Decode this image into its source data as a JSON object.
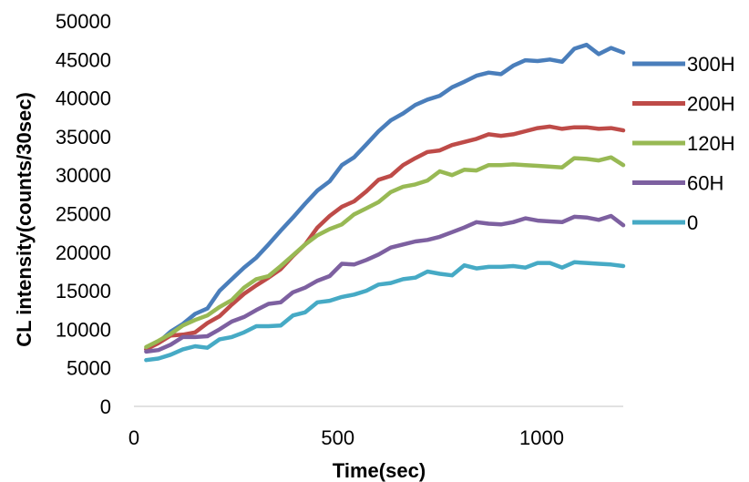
{
  "chart_data": {
    "type": "line",
    "xlabel": "Time(sec)",
    "ylabel": "CL intensity(counts/30sec)",
    "xlim": [
      0,
      1200
    ],
    "ylim": [
      0,
      50000
    ],
    "x_ticks": [
      0,
      500,
      1000
    ],
    "y_ticks": [
      0,
      5000,
      10000,
      15000,
      20000,
      25000,
      30000,
      35000,
      40000,
      45000,
      50000
    ],
    "grid": false,
    "legend_position": "right",
    "x": [
      30,
      60,
      90,
      120,
      150,
      180,
      210,
      240,
      270,
      300,
      330,
      360,
      390,
      420,
      450,
      480,
      510,
      540,
      570,
      600,
      630,
      660,
      690,
      720,
      750,
      780,
      810,
      840,
      870,
      900,
      930,
      960,
      990,
      1020,
      1050,
      1080,
      1110,
      1140,
      1170,
      1200
    ],
    "series": [
      {
        "name": "300H",
        "color": "#4a7ebb",
        "values": [
          7400,
          8300,
          9700,
          10700,
          12000,
          12700,
          15000,
          16500,
          18000,
          19300,
          21000,
          22800,
          24500,
          26300,
          28000,
          29200,
          31300,
          32300,
          34000,
          35700,
          37100,
          38000,
          39100,
          39800,
          40300,
          41400,
          42100,
          42900,
          43300,
          43100,
          44200,
          44900,
          44800,
          45000,
          44700,
          46400,
          46900,
          45700,
          46500,
          45900
        ]
      },
      {
        "name": "200H",
        "color": "#be4b48",
        "values": [
          7400,
          8200,
          9200,
          9300,
          9600,
          10800,
          11700,
          13200,
          14600,
          15700,
          16700,
          17800,
          19500,
          21000,
          23200,
          24700,
          25900,
          26600,
          27900,
          29400,
          29900,
          31300,
          32200,
          33000,
          33200,
          33900,
          34300,
          34700,
          35300,
          35100,
          35300,
          35700,
          36100,
          36300,
          36000,
          36200,
          36200,
          36000,
          36100,
          35800
        ]
      },
      {
        "name": "120H",
        "color": "#98b954",
        "values": [
          7700,
          8500,
          9400,
          10500,
          11200,
          11800,
          12900,
          13800,
          15400,
          16500,
          16900,
          18200,
          19600,
          21000,
          22200,
          23000,
          23600,
          24900,
          25700,
          26500,
          27800,
          28500,
          28800,
          29300,
          30500,
          30000,
          30700,
          30600,
          31300,
          31300,
          31400,
          31300,
          31200,
          31100,
          31000,
          32200,
          32100,
          31900,
          32300,
          31300
        ]
      },
      {
        "name": "60H",
        "color": "#7d60a0",
        "values": [
          7100,
          7300,
          8000,
          9000,
          9000,
          9100,
          10000,
          11000,
          11600,
          12500,
          13300,
          13500,
          14800,
          15400,
          16300,
          16900,
          18500,
          18400,
          19000,
          19700,
          20600,
          21000,
          21400,
          21600,
          22000,
          22600,
          23200,
          23900,
          23700,
          23600,
          23900,
          24400,
          24100,
          24000,
          23900,
          24600,
          24500,
          24200,
          24700,
          23500
        ]
      },
      {
        "name": "0",
        "color": "#46aac5",
        "values": [
          6000,
          6200,
          6700,
          7400,
          7800,
          7600,
          8700,
          9000,
          9600,
          10400,
          10400,
          10500,
          11800,
          12200,
          13500,
          13700,
          14200,
          14500,
          15000,
          15800,
          16000,
          16500,
          16700,
          17500,
          17200,
          17000,
          18300,
          17900,
          18100,
          18100,
          18200,
          18000,
          18600,
          18600,
          18000,
          18700,
          18600,
          18500,
          18400,
          18200
        ]
      }
    ]
  }
}
